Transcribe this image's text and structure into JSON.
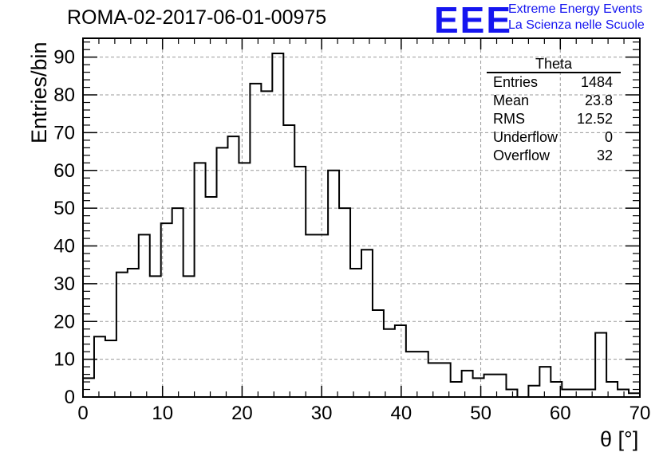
{
  "run_title": "ROMA-02-2017-06-01-00975",
  "logo": {
    "mark": "EEE",
    "line1": "Extreme Energy Events",
    "line2": "La Scienza nelle Scuole",
    "color": "#1515f0"
  },
  "stats_box": {
    "title": "Theta",
    "rows": [
      {
        "label": "Entries",
        "value": "1484"
      },
      {
        "label": "Mean",
        "value": "23.8"
      },
      {
        "label": "RMS",
        "value": "12.52"
      },
      {
        "label": "Underflow",
        "value": "0"
      },
      {
        "label": "Overflow",
        "value": "32"
      }
    ]
  },
  "chart_data": {
    "type": "bar",
    "style": "step-histogram",
    "xlabel": "θ [°]",
    "ylabel": "Entries/bin",
    "xlim": [
      0,
      70
    ],
    "ylim": [
      0,
      95
    ],
    "xticks": [
      0,
      10,
      20,
      30,
      40,
      50,
      60,
      70
    ],
    "yticks": [
      0,
      10,
      20,
      30,
      40,
      50,
      60,
      70,
      80,
      90
    ],
    "grid": true,
    "bin_width": 1.4,
    "bin_edges_start": 0,
    "values": [
      5,
      16,
      15,
      33,
      34,
      43,
      32,
      46,
      50,
      32,
      62,
      53,
      66,
      69,
      62,
      83,
      81,
      91,
      72,
      61,
      43,
      43,
      60,
      50,
      34,
      39,
      23,
      18,
      19,
      12,
      12,
      9,
      9,
      4,
      7,
      5,
      6,
      6,
      2,
      0,
      3,
      8,
      4,
      2,
      2,
      2,
      17,
      4,
      2,
      1
    ],
    "line_color": "#000000"
  }
}
